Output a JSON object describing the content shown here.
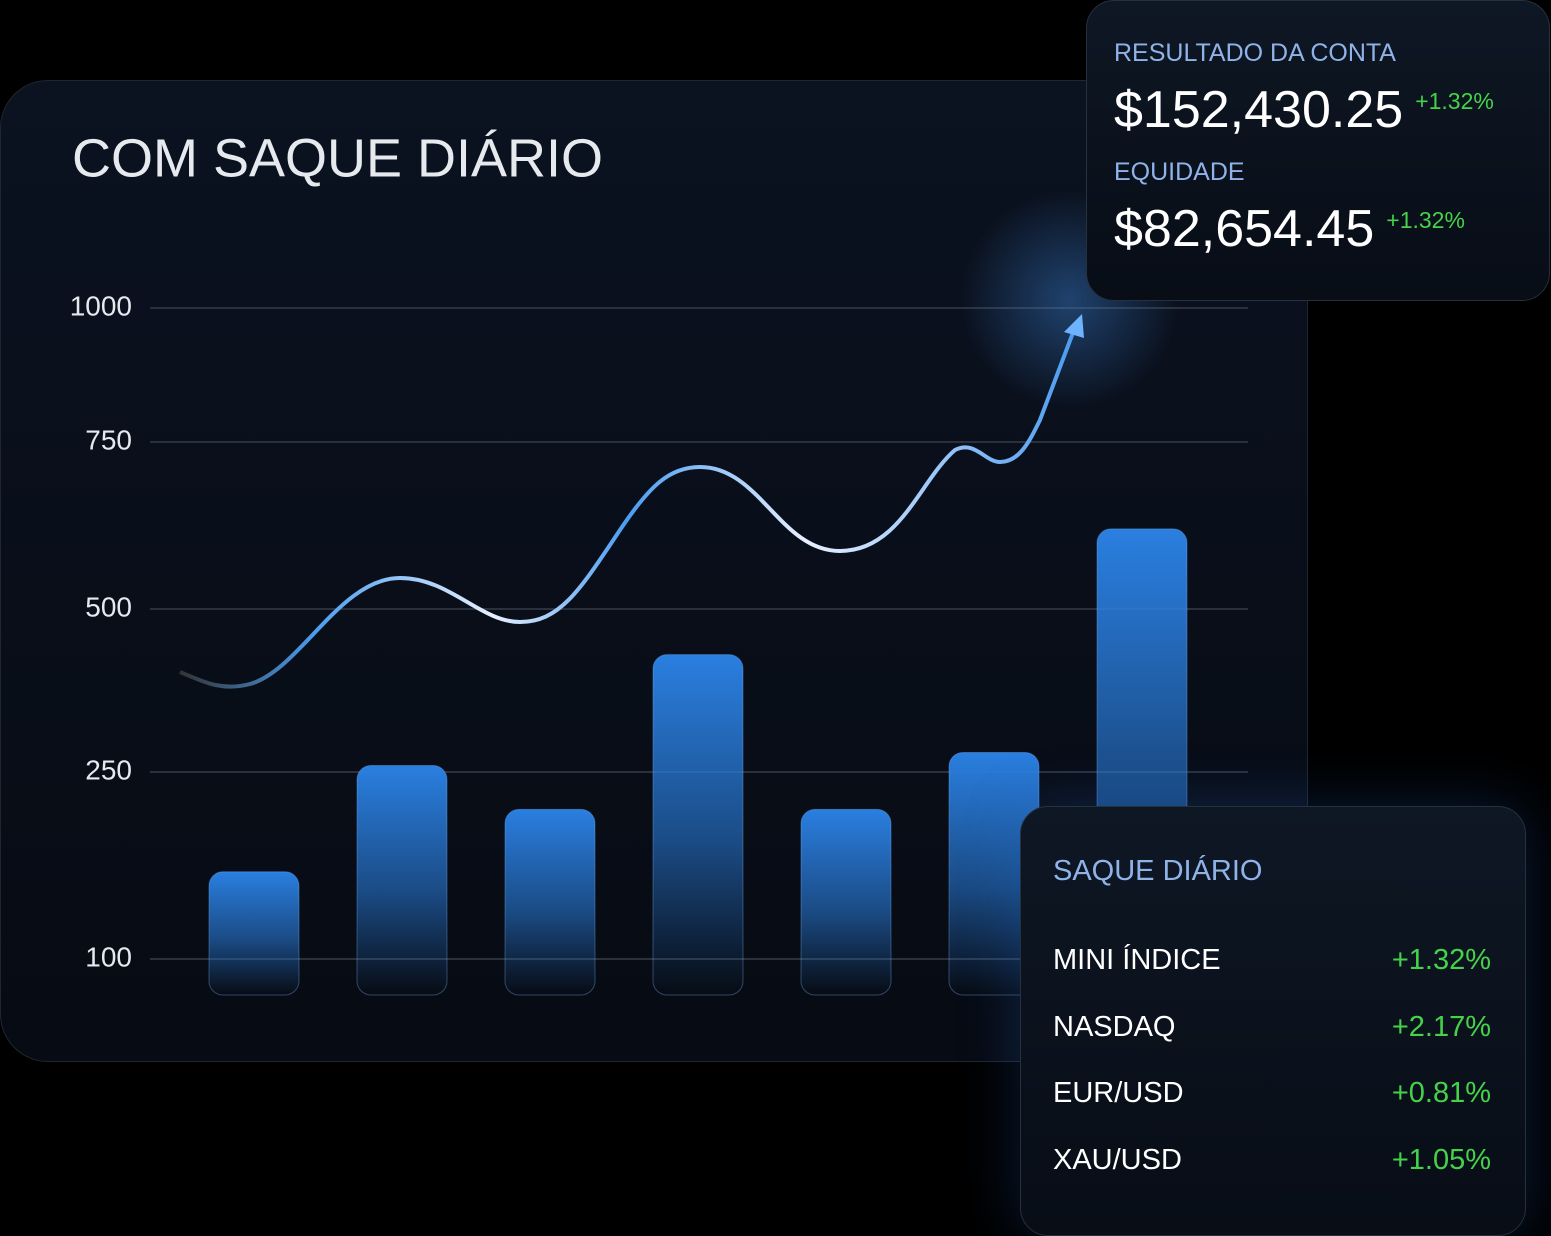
{
  "chart_data": {
    "type": "bar",
    "title": "COM SAQUE DIÁRIO",
    "categories": [
      null,
      null,
      null,
      null,
      null,
      null,
      null
    ],
    "values": [
      170,
      260,
      220,
      430,
      220,
      280,
      620
    ],
    "color": "#2a7fe0",
    "ylim": [
      100,
      1000
    ],
    "yticks": [
      1000,
      750,
      500,
      250,
      100
    ],
    "grid": true
  },
  "account_card": {
    "title": "RESULTADO DA CONTA",
    "balance": "$152,430.25",
    "balance_change": "+1.32%",
    "equity_label": "EQUIDADE",
    "equity": "$82,654.45",
    "equity_change": "+1.32%"
  },
  "withdrawal_card": {
    "title": "SAQUE DIÁRIO",
    "rows": [
      [
        "MINI ÍNDICE",
        "+1.32%"
      ],
      [
        "NASDAQ",
        "+2.17%"
      ],
      [
        "EUR/USD",
        "+0.81%"
      ],
      [
        "XAU/USD",
        "+1.05%"
      ]
    ]
  }
}
